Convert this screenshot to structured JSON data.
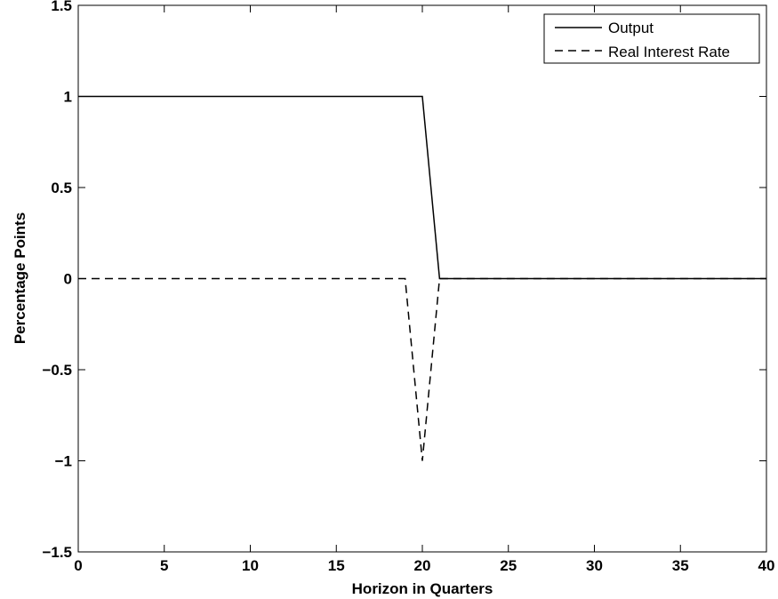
{
  "chart_data": {
    "type": "line",
    "title": "",
    "xlabel": "Horizon in Quarters",
    "ylabel": "Percentage Points",
    "xlim": [
      0,
      40
    ],
    "ylim": [
      -1.5,
      1.5
    ],
    "xticks": [
      0,
      5,
      10,
      15,
      20,
      25,
      30,
      35,
      40
    ],
    "yticks": [
      -1.5,
      -1,
      -0.5,
      0,
      0.5,
      1,
      1.5
    ],
    "xtick_labels": [
      "0",
      "5",
      "10",
      "15",
      "20",
      "25",
      "30",
      "35",
      "40"
    ],
    "ytick_labels": [
      "−1.5",
      "−1",
      "−0.5",
      "0",
      "0.5",
      "1",
      "1.5"
    ],
    "grid": false,
    "legend_position": "top-right",
    "series": [
      {
        "name": "Output",
        "style": "solid",
        "color": "#000000",
        "x": [
          0,
          20,
          21,
          40
        ],
        "y": [
          1,
          1,
          0,
          0
        ]
      },
      {
        "name": "Real Interest Rate",
        "style": "dashed",
        "color": "#000000",
        "x": [
          0,
          19,
          20,
          21,
          40
        ],
        "y": [
          0,
          0,
          -1,
          0,
          0
        ]
      }
    ]
  }
}
